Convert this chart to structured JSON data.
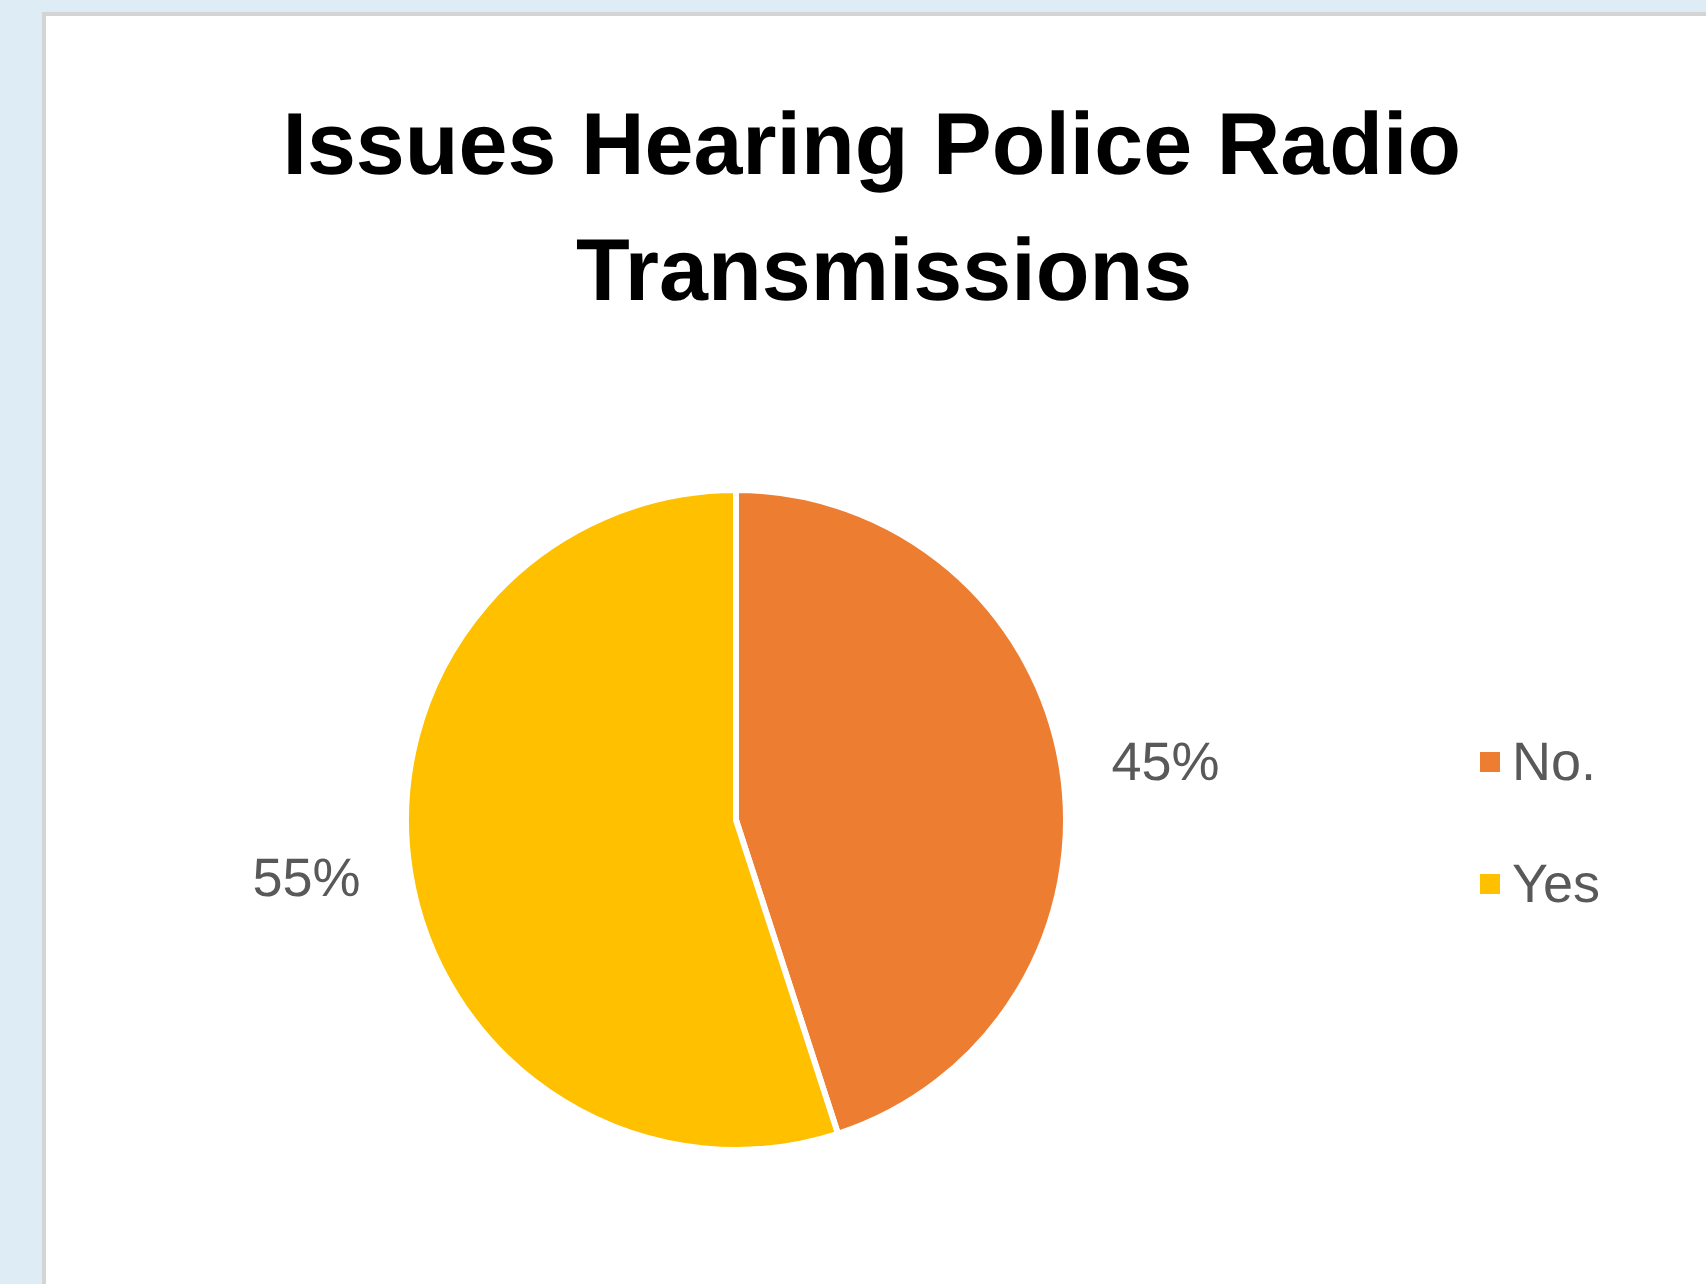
{
  "chart_data": {
    "type": "pie",
    "title": "Issues Hearing Police Radio Transmissions",
    "categories": [
      "No.",
      "Yes"
    ],
    "values": [
      45,
      55
    ],
    "colors": [
      "#ed7d31",
      "#ffc000"
    ],
    "value_labels": [
      "45%",
      "55%"
    ],
    "legend": "right"
  }
}
